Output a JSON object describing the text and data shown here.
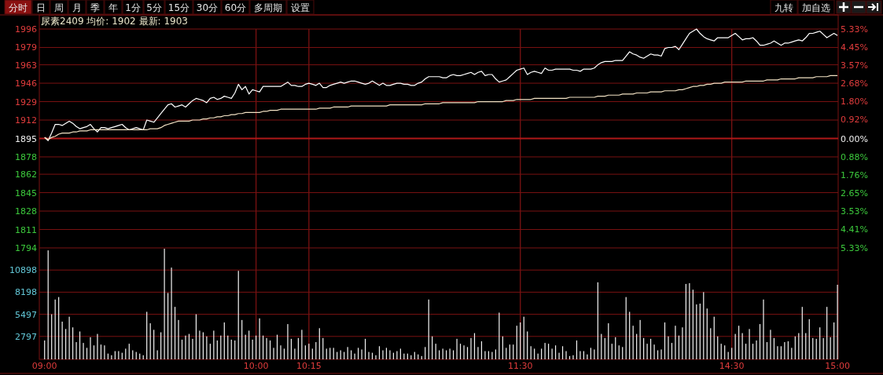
{
  "chart_data": [
    {
      "type": "line",
      "title": "尿素2409 均价: 1902 最新: 1903",
      "annotations": [
        "分时",
        "日",
        "周",
        "月",
        "季",
        "年",
        "1分",
        "5分",
        "15分",
        "30分",
        "60分",
        "多周期",
        "设置",
        "九转",
        "加自选"
      ],
      "categories": [
        null,
        null,
        null,
        null,
        null,
        null,
        null,
        null,
        null,
        null,
        null,
        null,
        null,
        null,
        null,
        null,
        null,
        null,
        null,
        null,
        null,
        null,
        null,
        null,
        null,
        null,
        null,
        null,
        null,
        null,
        null,
        null,
        null,
        null,
        null,
        null,
        null,
        null,
        null,
        null,
        null,
        null,
        null,
        null,
        null,
        null,
        null,
        null,
        null,
        null,
        null,
        null,
        null,
        null,
        null,
        null,
        null,
        null,
        null,
        null,
        null,
        null,
        null,
        null,
        null,
        null,
        null,
        null,
        null,
        null,
        null,
        null,
        null,
        null,
        null,
        null,
        null,
        null,
        null,
        null,
        null,
        null,
        null,
        null,
        null,
        null,
        null,
        null,
        null,
        null,
        null,
        null,
        null,
        null,
        null,
        null,
        null,
        null,
        null,
        null,
        null,
        null,
        null,
        null,
        null,
        null,
        null,
        null,
        null,
        null,
        null,
        null,
        null,
        null,
        null,
        null,
        null,
        null,
        null,
        null,
        null,
        null,
        null,
        null,
        null,
        null,
        null,
        null,
        null,
        null,
        null,
        null,
        null,
        null,
        null,
        null,
        null,
        null,
        null,
        null,
        null,
        null,
        null,
        null,
        null,
        null,
        null,
        null,
        null,
        null,
        null,
        null,
        null,
        null,
        null,
        null,
        null,
        null,
        null,
        null,
        null,
        null,
        null,
        null,
        null,
        null,
        null,
        null,
        null,
        null,
        null,
        null,
        null,
        null,
        null,
        null,
        null,
        null,
        null,
        null,
        null,
        null,
        null,
        null,
        null,
        null,
        null,
        null,
        null,
        null,
        null,
        null,
        null,
        null,
        null,
        null,
        null,
        null,
        null,
        null,
        null,
        null,
        null,
        null,
        null,
        null,
        null,
        null,
        null,
        null,
        null,
        null,
        null,
        null,
        null,
        null,
        null,
        null,
        null,
        null,
        null,
        null,
        null,
        null,
        null,
        null
      ],
      "series": [
        {
          "color": "#ffffff",
          "values": [
            1896,
            1893,
            1900,
            1908,
            1908,
            1907,
            1909,
            1911,
            1909,
            1906,
            1904,
            1905,
            1906,
            1908,
            1904,
            1901,
            1905,
            1905,
            1904,
            1905,
            1906,
            1907,
            1908,
            1905,
            1903,
            1904,
            1905,
            1904,
            1903,
            1912,
            1911,
            1910,
            1914,
            1918,
            1922,
            1926,
            1927,
            1924,
            1925,
            1926,
            1924,
            1927,
            1930,
            1932,
            1931,
            1930,
            1928,
            1932,
            1933,
            1931,
            1932,
            1934,
            1933,
            1932,
            1937,
            1945,
            1940,
            1943,
            1936,
            1940,
            1939,
            1938,
            1943,
            1943,
            1943,
            1943,
            1943,
            1943,
            1945,
            1947,
            1944,
            1944,
            1943,
            1943,
            1945,
            1946,
            1945,
            1944,
            1946,
            1942,
            1942,
            1944,
            1945,
            1946,
            1947,
            1946,
            1947,
            1948,
            1948,
            1947,
            1946,
            1945,
            1946,
            1948,
            1946,
            1944,
            1946,
            1944,
            1944,
            1945,
            1946,
            1946,
            1945,
            1945,
            1944,
            1944,
            1946,
            1947,
            1950,
            1952,
            1952,
            1952,
            1952,
            1951,
            1951,
            1953,
            1954,
            1953,
            1953,
            1954,
            1955,
            1956,
            1954,
            1956,
            1957,
            1953,
            1954,
            1954,
            1950,
            1947,
            1948,
            1949,
            1952,
            1955,
            1958,
            1959,
            1960,
            1954,
            1956,
            1957,
            1956,
            1955,
            1960,
            1958,
            1958,
            1959,
            1959,
            1959,
            1959,
            1959,
            1958,
            1958,
            1957,
            1959,
            1959,
            1959,
            1960,
            1963,
            1965,
            1966,
            1966,
            1966,
            1967,
            1967,
            1967,
            1971,
            1975,
            1973,
            1972,
            1970,
            1969,
            1971,
            1973,
            1972,
            1972,
            1971,
            1978,
            1979,
            1979,
            1980,
            1977,
            1982,
            1987,
            1992,
            1994,
            1996,
            1992,
            1989,
            1987,
            1986,
            1985,
            1988,
            1988,
            1988,
            1988,
            1990,
            1992,
            1989,
            1986,
            1987,
            1987,
            1988,
            1985,
            1981,
            1981,
            1982,
            1983,
            1985,
            1983,
            1981,
            1983,
            1983,
            1984,
            1985,
            1986,
            1985,
            1988,
            1992,
            1992,
            1993,
            1994,
            1991,
            1988,
            1990,
            1992,
            1990
          ]
        },
        {
          "color": "#f2e2c4",
          "values": [
            1896,
            1894,
            1896,
            1897,
            1899,
            1900,
            1900,
            1900,
            1901,
            1901,
            1902,
            1902,
            1902,
            1903,
            1903,
            1903,
            1903,
            1903,
            1903,
            1903,
            1903,
            1903,
            1903,
            1903,
            1903,
            1903,
            1903,
            1903,
            1903,
            1903,
            1904,
            1904,
            1904,
            1905,
            1907,
            1908,
            1909,
            1910,
            1911,
            1911,
            1911,
            1911,
            1912,
            1912,
            1912,
            1913,
            1913,
            1914,
            1914,
            1915,
            1915,
            1916,
            1916,
            1917,
            1917,
            1918,
            1918,
            1919,
            1919,
            1919,
            1919,
            1919,
            1920,
            1920,
            1921,
            1921,
            1921,
            1922,
            1922,
            1922,
            1922,
            1922,
            1922,
            1922,
            1922,
            1922,
            1922,
            1922,
            1923,
            1923,
            1923,
            1923,
            1924,
            1924,
            1924,
            1924,
            1924,
            1925,
            1925,
            1925,
            1925,
            1925,
            1925,
            1925,
            1925,
            1925,
            1925,
            1925,
            1926,
            1926,
            1926,
            1926,
            1926,
            1926,
            1926,
            1926,
            1926,
            1926,
            1927,
            1927,
            1927,
            1927,
            1927,
            1928,
            1928,
            1928,
            1928,
            1928,
            1928,
            1928,
            1928,
            1928,
            1928,
            1929,
            1929,
            1929,
            1929,
            1929,
            1929,
            1929,
            1929,
            1930,
            1930,
            1930,
            1931,
            1931,
            1931,
            1931,
            1931,
            1932,
            1932,
            1932,
            1932,
            1932,
            1932,
            1932,
            1932,
            1932,
            1932,
            1933,
            1933,
            1933,
            1933,
            1933,
            1933,
            1933,
            1933,
            1934,
            1934,
            1934,
            1935,
            1935,
            1935,
            1935,
            1936,
            1936,
            1936,
            1936,
            1937,
            1937,
            1937,
            1937,
            1938,
            1938,
            1938,
            1938,
            1939,
            1939,
            1939,
            1939,
            1940,
            1940,
            1941,
            1942,
            1943,
            1943,
            1944,
            1944,
            1945,
            1945,
            1946,
            1946,
            1946,
            1947,
            1947,
            1947,
            1947,
            1947,
            1947,
            1948,
            1948,
            1948,
            1948,
            1948,
            1948,
            1949,
            1949,
            1949,
            1949,
            1950,
            1950,
            1950,
            1950,
            1950,
            1951,
            1951,
            1951,
            1951,
            1951,
            1952,
            1952,
            1952,
            1952,
            1953,
            1953,
            1953
          ]
        }
      ],
      "ylim": [
        1794,
        1996
      ],
      "yticks": [
        1996,
        1979,
        1963,
        1946,
        1929,
        1912,
        1895,
        1878,
        1862,
        1845,
        1828,
        1811,
        1794
      ],
      "y2lim": [
        -5.33,
        5.33
      ],
      "y2ticks": [
        {
          "value": 5.33,
          "label": "5.33%"
        },
        {
          "value": 4.45,
          "label": "4.45%"
        },
        {
          "value": 3.57,
          "label": "3.57%"
        },
        {
          "value": 2.68,
          "label": "2.68%"
        },
        {
          "value": 1.8,
          "label": "1.80%"
        },
        {
          "value": 0.92,
          "label": "0.92%"
        },
        {
          "value": 0,
          "label": "0.00%"
        },
        {
          "value": -0.88,
          "label": "0.88%"
        },
        {
          "value": -1.76,
          "label": "1.76%"
        },
        {
          "value": -2.65,
          "label": "2.65%"
        },
        {
          "value": -3.53,
          "label": "3.53%"
        },
        {
          "value": -4.41,
          "label": "4.41%"
        },
        {
          "value": -5.33,
          "label": "5.33%"
        }
      ],
      "ref_lines": [
        {
          "axis": "y",
          "value": 1895
        }
      ],
      "grid": true,
      "tick_labels": "y",
      "line_style": "solid"
    },
    {
      "type": "bar",
      "categories": [
        "09:00",
        null,
        null,
        null,
        null,
        null,
        null,
        null,
        null,
        null,
        null,
        null,
        null,
        null,
        null,
        null,
        null,
        null,
        null,
        null,
        null,
        null,
        null,
        null,
        null,
        null,
        null,
        null,
        null,
        null,
        null,
        null,
        null,
        null,
        null,
        null,
        null,
        null,
        null,
        null,
        null,
        null,
        null,
        null,
        null,
        null,
        null,
        null,
        null,
        null,
        null,
        null,
        null,
        null,
        null,
        null,
        null,
        null,
        null,
        null,
        "10:00",
        null,
        null,
        null,
        null,
        null,
        null,
        null,
        null,
        null,
        null,
        null,
        null,
        null,
        null,
        "10:15",
        null,
        null,
        null,
        null,
        null,
        null,
        null,
        null,
        null,
        null,
        null,
        null,
        null,
        null,
        null,
        null,
        null,
        null,
        null,
        null,
        null,
        null,
        null,
        null,
        null,
        null,
        null,
        null,
        null,
        null,
        null,
        null,
        null,
        null,
        null,
        null,
        null,
        null,
        null,
        null,
        null,
        null,
        null,
        null,
        null,
        null,
        null,
        null,
        null,
        null,
        null,
        null,
        null,
        null,
        null,
        null,
        null,
        null,
        null,
        "11:30",
        null,
        null,
        null,
        null,
        null,
        null,
        null,
        null,
        null,
        null,
        null,
        null,
        null,
        null,
        null,
        null,
        null,
        null,
        null,
        null,
        null,
        null,
        null,
        null,
        null,
        null,
        null,
        null,
        null,
        null,
        null,
        null,
        null,
        null,
        null,
        null,
        null,
        null,
        null,
        null,
        null,
        null,
        null,
        null,
        null,
        null,
        null,
        null,
        null,
        null,
        null,
        null,
        null,
        null,
        null,
        null,
        null,
        null,
        null,
        "14:30",
        null,
        null,
        null,
        null,
        null,
        null,
        null,
        null,
        null,
        null,
        null,
        null,
        null,
        null,
        null,
        null,
        null,
        null,
        null,
        null,
        null,
        null,
        null,
        null,
        null,
        null,
        null,
        null,
        null,
        "15:00"
      ],
      "series": [
        {
          "color": "#f4f4f4",
          "values": [
            2300,
            13300,
            5500,
            7300,
            7600,
            4600,
            3700,
            5200,
            3900,
            2100,
            3400,
            2000,
            1400,
            2700,
            1700,
            3100,
            1800,
            1700,
            700,
            500,
            1000,
            1000,
            800,
            1300,
            1900,
            1100,
            900,
            700,
            500,
            5800,
            4400,
            3600,
            1100,
            3300,
            13500,
            8100,
            11200,
            6400,
            4800,
            2400,
            2900,
            3100,
            2500,
            5500,
            3500,
            3300,
            2800,
            1900,
            3500,
            2300,
            2900,
            4500,
            2900,
            2400,
            2300,
            10800,
            4800,
            3000,
            3500,
            2400,
            2900,
            5000,
            2900,
            2600,
            2300,
            1400,
            3000,
            1700,
            1300,
            4300,
            2500,
            1300,
            2600,
            3600,
            1700,
            1900,
            1300,
            2100,
            3800,
            2600,
            1300,
            1400,
            1400,
            900,
            1100,
            900,
            1500,
            1100,
            700,
            1400,
            1200,
            2500,
            900,
            800,
            500,
            1600,
            1100,
            1400,
            1100,
            800,
            1000,
            1300,
            700,
            700,
            500,
            900,
            600,
            400,
            1500,
            7300,
            2800,
            1900,
            1100,
            1300,
            1100,
            1300,
            1100,
            2500,
            1900,
            1700,
            1500,
            2600,
            3200,
            1500,
            2200,
            1000,
            1000,
            900,
            1200,
            5700,
            2800,
            1400,
            1800,
            1800,
            4100,
            4500,
            5200,
            3400,
            1600,
            1300,
            700,
            1300,
            2000,
            1900,
            1300,
            1700,
            800,
            1600,
            1000,
            400,
            500,
            2300,
            1000,
            1000,
            600,
            1400,
            1200,
            9400,
            3100,
            2600,
            4400,
            1900,
            2700,
            1700,
            1500,
            7600,
            5800,
            4100,
            3100,
            4800,
            2600,
            1900,
            2500,
            1800,
            1100,
            1200,
            4500,
            2800,
            2000,
            4100,
            2900,
            3900,
            9200,
            9300,
            8500,
            6700,
            6800,
            8200,
            6200,
            3800,
            5200,
            2800,
            1900,
            1700,
            900,
            1400,
            3100,
            4100,
            3200,
            1900,
            3700,
            1900,
            2300,
            4300,
            7300,
            2100,
            3600,
            2600,
            1600,
            1600,
            2100,
            2200,
            1400,
            2800,
            3200,
            6400,
            3200,
            4900,
            2600,
            2500,
            3900,
            2600,
            6400,
            2700,
            4500,
            9100
          ]
        }
      ],
      "ylim": [
        0,
        13600
      ],
      "yticks": [
        2797,
        5497,
        8198,
        10898
      ],
      "grid": true
    }
  ]
}
